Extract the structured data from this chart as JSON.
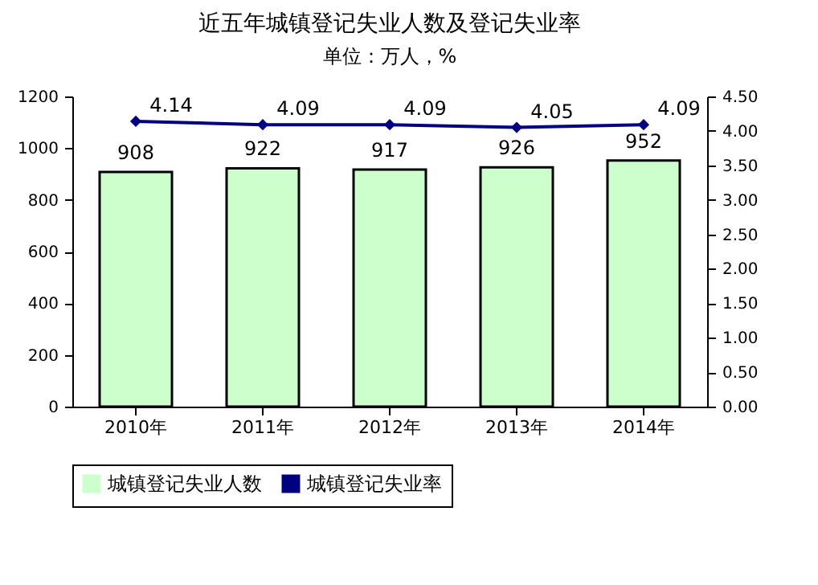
{
  "chart_data": {
    "type": "bar",
    "title": "近五年城镇登记失业人数及登记失业率",
    "subtitle": "单位：万人，%",
    "categories": [
      "2010年",
      "2011年",
      "2012年",
      "2013年",
      "2014年"
    ],
    "series": [
      {
        "name": "城镇登记失业人数",
        "color": "#ccffcc",
        "values": [
          908,
          922,
          917,
          926,
          952
        ]
      },
      {
        "name": "城镇登记失业率",
        "type": "line",
        "axis": "y2",
        "color": "#000080",
        "values": [
          4.14,
          4.09,
          4.09,
          4.05,
          4.09
        ]
      }
    ],
    "ylim": [
      0,
      1200
    ],
    "yticks": [
      0,
      200,
      400,
      600,
      800,
      1000,
      1200
    ],
    "y2lim": [
      0,
      4.5
    ],
    "y2ticks": [
      {
        "value": 0,
        "label": "0.00"
      },
      {
        "value": 0.5,
        "label": "0.50"
      },
      {
        "value": 1,
        "label": "1.00"
      },
      {
        "value": 1.5,
        "label": "1.50"
      },
      {
        "value": 2,
        "label": "2.00"
      },
      {
        "value": 2.5,
        "label": "2.50"
      },
      {
        "value": 3,
        "label": "3.00"
      },
      {
        "value": 3.5,
        "label": "3.50"
      },
      {
        "value": 4,
        "label": "4.00"
      },
      {
        "value": 4.5,
        "label": "4.50"
      }
    ],
    "data_labels": true,
    "grid": false,
    "legend": "bottom",
    "marker": "diamond",
    "line_style": "solid"
  }
}
